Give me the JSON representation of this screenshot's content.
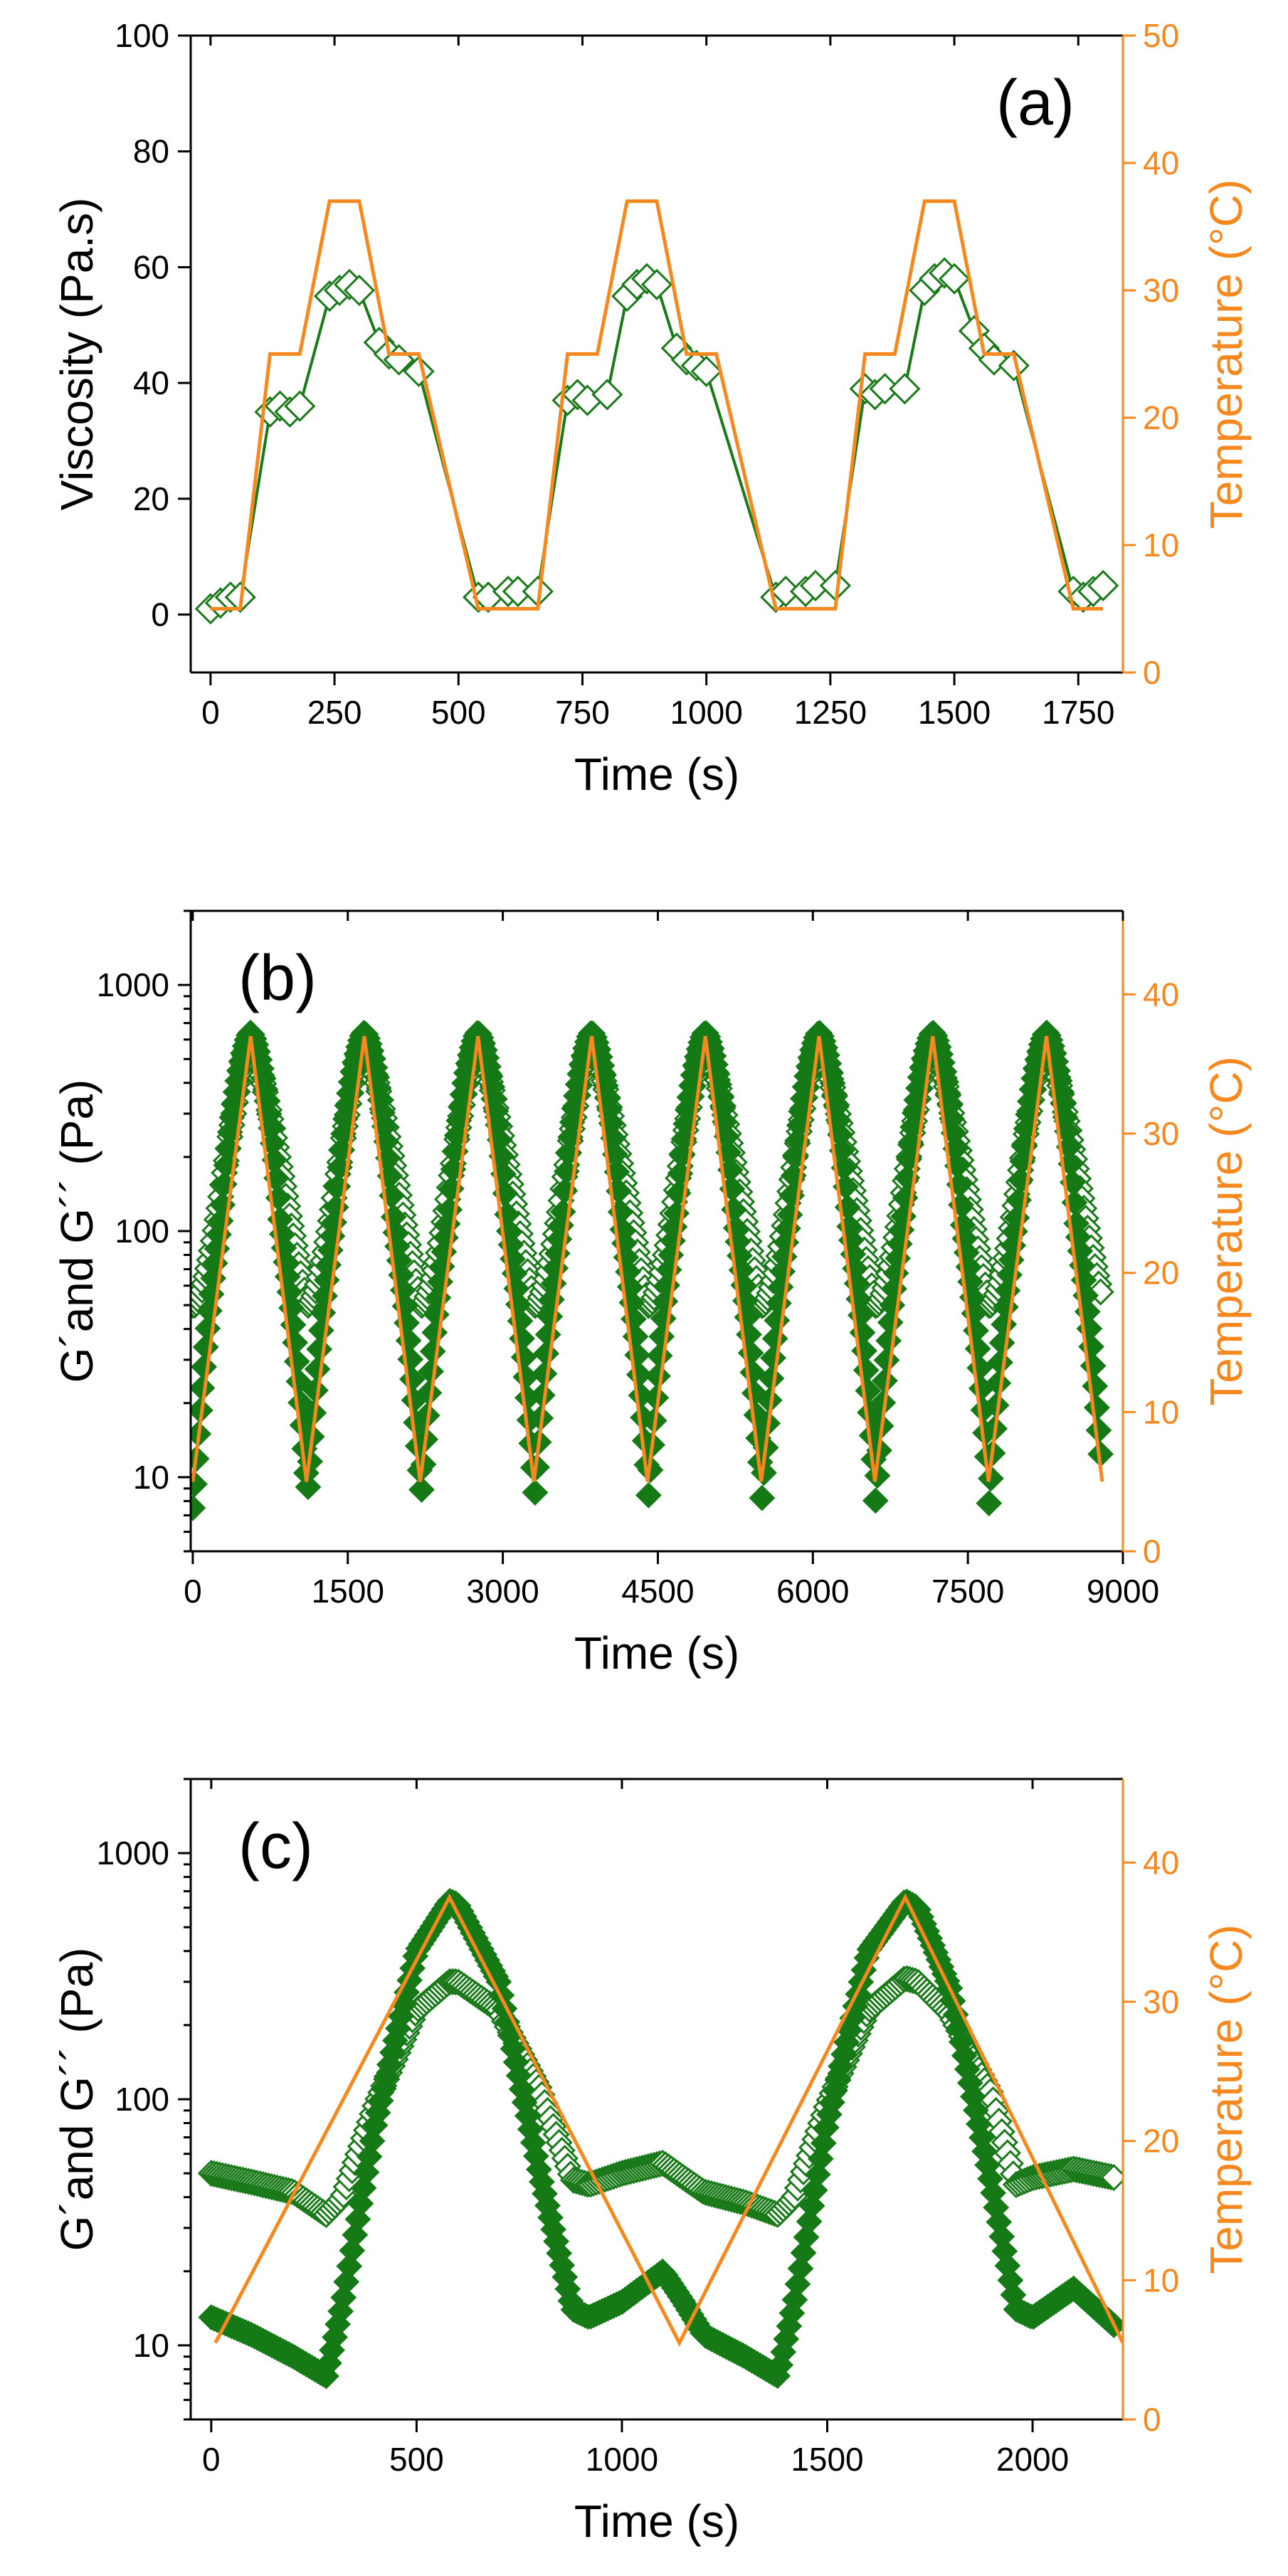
{
  "colors": {
    "green": "#157a15",
    "orange": "#f5891f"
  },
  "chart_data": [
    {
      "type": "line",
      "panel": "(a)",
      "xlabel": "Time (s)",
      "ylabel": "Viscosity (Pa.s)",
      "y2label": "Temperature (°C)",
      "xlim": [
        -40,
        1840
      ],
      "ylim": [
        -10,
        100
      ],
      "y2lim": [
        0,
        50
      ],
      "xticks": [
        0,
        250,
        500,
        750,
        1000,
        1250,
        1500,
        1750
      ],
      "yticks": [
        0,
        20,
        40,
        60,
        80,
        100
      ],
      "y2ticks": [
        0,
        10,
        20,
        30,
        40,
        50
      ],
      "series": [
        {
          "name": "Viscosity",
          "axis": "left",
          "marker": "open-diamond",
          "x": [
            0,
            20,
            40,
            60,
            120,
            140,
            160,
            180,
            240,
            260,
            280,
            300,
            340,
            360,
            380,
            420,
            540,
            560,
            600,
            620,
            660,
            720,
            740,
            760,
            800,
            840,
            860,
            880,
            900,
            940,
            960,
            980,
            1000,
            1140,
            1160,
            1200,
            1220,
            1260,
            1320,
            1340,
            1360,
            1400,
            1440,
            1460,
            1480,
            1500,
            1540,
            1560,
            1580,
            1620,
            1740,
            1760,
            1780,
            1800
          ],
          "values": [
            1,
            2,
            3,
            3,
            35,
            36,
            35,
            36,
            55,
            56,
            57,
            56,
            47,
            45,
            44,
            42,
            3,
            3,
            4,
            4,
            4,
            37,
            38,
            37,
            38,
            55,
            57,
            58,
            57,
            46,
            44,
            43,
            42,
            3,
            4,
            4,
            5,
            5,
            39,
            38,
            39,
            39,
            56,
            58,
            59,
            58,
            49,
            46,
            44,
            43,
            4,
            3,
            4,
            5
          ]
        },
        {
          "name": "Temperature",
          "axis": "right",
          "x": [
            0,
            60,
            120,
            180,
            240,
            300,
            360,
            420,
            540,
            660,
            720,
            780,
            840,
            900,
            960,
            1020,
            1140,
            1260,
            1320,
            1380,
            1440,
            1500,
            1560,
            1620,
            1740,
            1800
          ],
          "values": [
            5,
            5,
            25,
            25,
            37,
            37,
            25,
            25,
            5,
            5,
            25,
            25,
            37,
            37,
            25,
            25,
            5,
            5,
            25,
            25,
            37,
            37,
            25,
            25,
            5,
            5
          ]
        }
      ]
    },
    {
      "type": "scatter",
      "panel": "(b)",
      "xlabel": "Time (s)",
      "ylabel": "G´and G´´ (Pa)",
      "y2label": "Temperature (°C)",
      "xlim": [
        -20,
        9000
      ],
      "ylim": [
        5,
        2000
      ],
      "yscale": "log",
      "y2lim": [
        0,
        46
      ],
      "xticks": [
        0,
        1500,
        3000,
        4500,
        6000,
        7500,
        9000
      ],
      "yticks": [
        10,
        100,
        1000
      ],
      "y2ticks": [
        0,
        10,
        20,
        30,
        40
      ],
      "cycle": {
        "period": 1100,
        "count": 8,
        "t_peak": 560,
        "t_trough": 1100,
        "T_min": 5,
        "T_max": 37
      },
      "series": [
        {
          "name": "G´",
          "marker": "filled-diamond",
          "min": 7.5,
          "max": 640
        },
        {
          "name": "G´´",
          "marker": "open-diamond",
          "min": 35,
          "max": 600,
          "base": 50
        },
        {
          "name": "Temperature",
          "axis": "right",
          "min": 5,
          "max": 37
        }
      ]
    },
    {
      "type": "scatter",
      "panel": "(c)",
      "xlabel": "Time (s)",
      "ylabel": "G´and G´´ (Pa)",
      "y2label": "Temperature (°C)",
      "xlim": [
        -50,
        2220
      ],
      "ylim": [
        5,
        2000
      ],
      "yscale": "log",
      "y2lim": [
        0,
        46
      ],
      "xticks": [
        0,
        500,
        1000,
        1500,
        2000
      ],
      "yticks": [
        10,
        100,
        1000
      ],
      "y2ticks": [
        0,
        10,
        20,
        30,
        40
      ],
      "series": [
        {
          "name": "G´",
          "marker": "filled-diamond",
          "x": [
            0,
            100,
            200,
            280,
            320,
            400,
            500,
            580,
            600,
            700,
            800,
            880,
            920,
            1000,
            1100,
            1150,
            1200,
            1300,
            1380,
            1420,
            1500,
            1600,
            1690,
            1720,
            1800,
            1900,
            1960,
            2000,
            2100,
            2200
          ],
          "values": [
            13,
            11,
            9,
            7.5,
            15,
            80,
            400,
            640,
            620,
            300,
            50,
            14,
            13,
            15,
            20,
            15,
            11,
            9,
            7.5,
            15,
            80,
            400,
            640,
            600,
            280,
            45,
            14,
            13,
            17,
            12
          ]
        },
        {
          "name": "G´´",
          "marker": "open-diamond",
          "x": [
            0,
            100,
            200,
            280,
            320,
            400,
            500,
            580,
            600,
            700,
            800,
            880,
            920,
            1000,
            1100,
            1150,
            1200,
            1300,
            1380,
            1420,
            1500,
            1600,
            1690,
            1720,
            1800,
            1900,
            1960,
            2000,
            2100,
            2200
          ],
          "values": [
            50,
            46,
            42,
            34,
            40,
            95,
            230,
            300,
            300,
            230,
            110,
            47,
            45,
            50,
            55,
            48,
            42,
            38,
            34,
            40,
            95,
            230,
            310,
            300,
            220,
            105,
            45,
            48,
            52,
            48
          ]
        },
        {
          "name": "Temperature",
          "axis": "right",
          "x": [
            10,
            580,
            1140,
            1690,
            2220
          ],
          "values": [
            5.5,
            37.5,
            5.5,
            37.5,
            5.5
          ]
        }
      ]
    }
  ]
}
